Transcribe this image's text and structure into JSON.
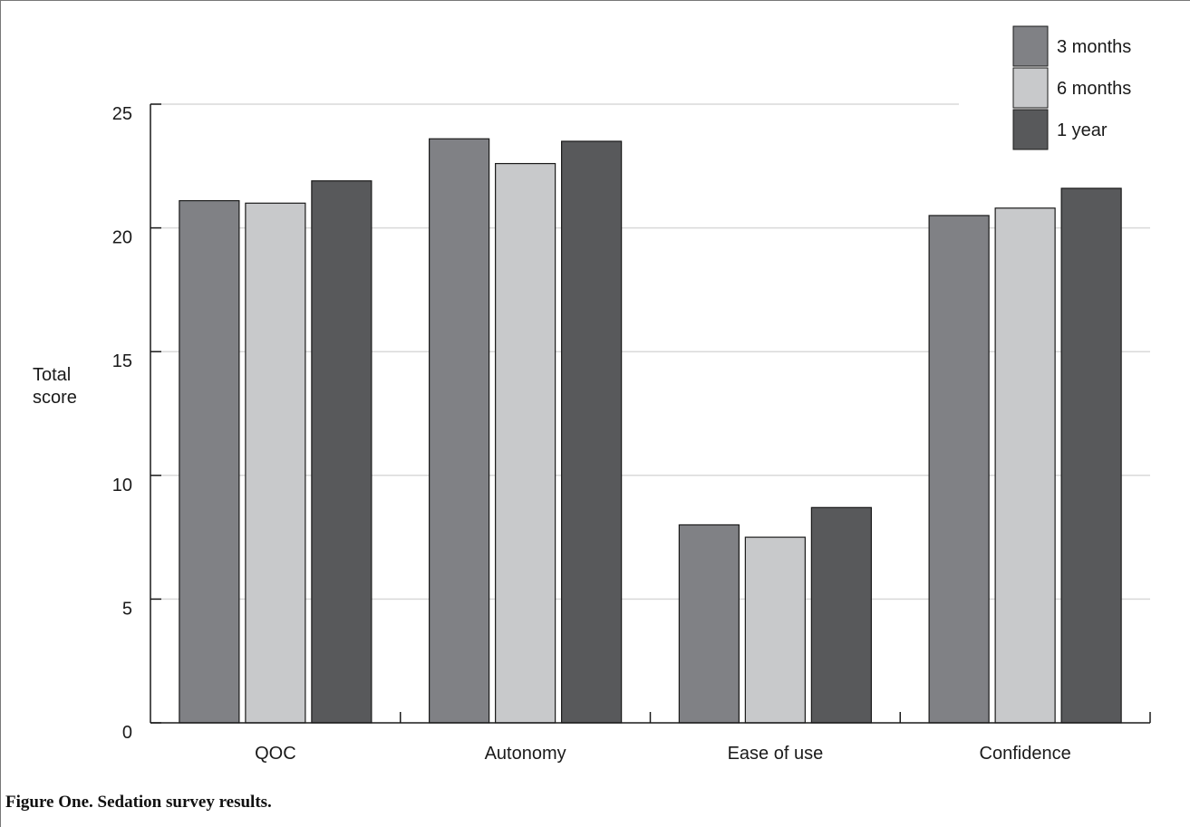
{
  "figure": {
    "caption": "Figure One. Sedation survey results."
  },
  "chart_data": {
    "type": "bar",
    "categories": [
      "QOC",
      "Autonomy",
      "Ease of use",
      "Confidence"
    ],
    "series": [
      {
        "name": "3 months",
        "values": [
          21.1,
          23.6,
          8.0,
          20.5
        ],
        "color": "#808185"
      },
      {
        "name": "6 months",
        "values": [
          21.0,
          22.6,
          7.5,
          20.8
        ],
        "color": "#c8c9cb"
      },
      {
        "name": "1 year",
        "values": [
          21.9,
          23.5,
          8.7,
          21.6
        ],
        "color": "#58595b"
      }
    ],
    "ylabel": [
      "Total",
      "score"
    ],
    "xlabel": "",
    "ylim": [
      0,
      25
    ],
    "yticks": [
      0,
      5,
      10,
      15,
      20,
      25
    ],
    "grid": true,
    "legend_position": "top-right"
  }
}
